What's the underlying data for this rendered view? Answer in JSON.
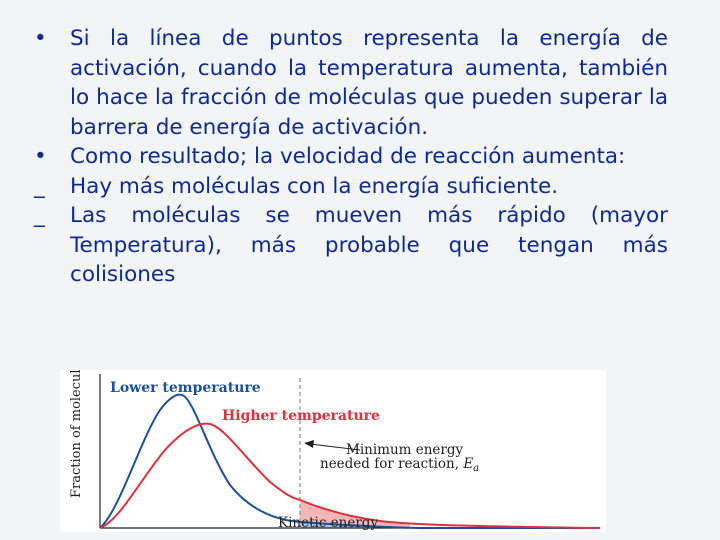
{
  "slide": {
    "bullets": [
      "Si la línea de puntos representa la energía de activación, cuando  la temperatura aumenta, también lo hace la fracción de moléculas que pueden superar la barrera de energía de activación.",
      "Como resultado; la velocidad de reacción aumenta:"
    ],
    "bullet_mark": "•",
    "dash_items": [
      "Hay más moléculas con la energía suficiente.",
      "Las moléculas se mueven más rápido (mayor Temperatura), más probable que tengan más colisiones"
    ],
    "dash_mark": "_"
  },
  "chart_data": {
    "type": "line",
    "xlabel": "Kinetic energy",
    "ylabel": "Fraction of molecules",
    "series": [
      {
        "name": "Lower temperature",
        "color": "#1a4f9c"
      },
      {
        "name": "Higher temperature",
        "color": "#e0303a"
      }
    ],
    "annotation": "Minimum energy needed for reaction, Ea",
    "annotation_line1": "Minimum energy",
    "annotation_line2": "needed for reaction, ",
    "annotation_symbol": "Ea",
    "colors": {
      "lower": "#1a4f9c",
      "higher": "#e0303a",
      "threshold": "#999999",
      "fill_red": "#f4b7b7",
      "fill_blue": "#a9bfe0"
    }
  }
}
